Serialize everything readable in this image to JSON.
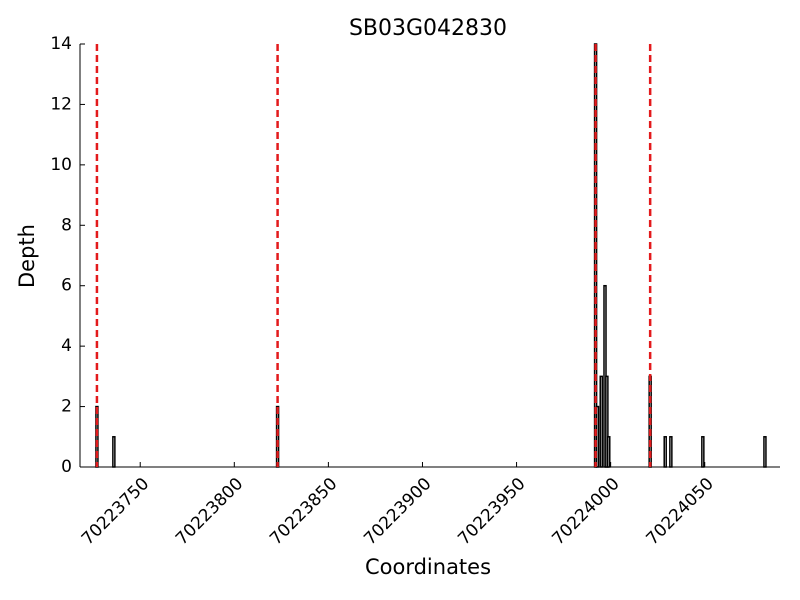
{
  "chart_data": {
    "type": "bar",
    "title": "SB03G042830",
    "x_label": "Coordinates",
    "y_label": "Depth",
    "x": [
      70223727,
      70223736,
      70223823,
      70223992,
      70223993,
      70223995,
      70223997,
      70223998,
      70223999,
      70224021,
      70224029,
      70224032,
      70224049,
      70224082
    ],
    "values": [
      2,
      1,
      2,
      14,
      2,
      3,
      6,
      3,
      1,
      3,
      1,
      1,
      1,
      1
    ],
    "color": "#000000",
    "vlines": [
      70223727,
      70223823,
      70223992,
      70224021
    ],
    "vline_color": "#e31a1c",
    "xlim": [
      70223718,
      70224090
    ],
    "xticks": [
      70223750,
      70223800,
      70223850,
      70223900,
      70223950,
      70224000,
      70224050
    ],
    "ylim": [
      0,
      14
    ],
    "yticks": [
      0,
      2,
      4,
      6,
      8,
      10,
      12,
      14
    ],
    "grid": false
  }
}
